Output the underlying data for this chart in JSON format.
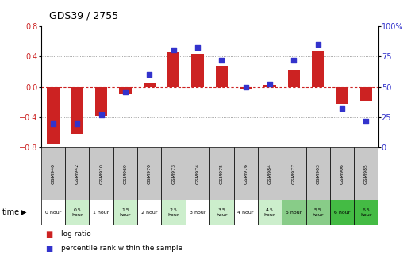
{
  "title": "GDS39 / 2755",
  "samples": [
    "GSM940",
    "GSM942",
    "GSM910",
    "GSM969",
    "GSM970",
    "GSM973",
    "GSM974",
    "GSM975",
    "GSM976",
    "GSM984",
    "GSM977",
    "GSM903",
    "GSM906",
    "GSM985"
  ],
  "time_labels": [
    "0 hour",
    "0.5\nhour",
    "1 hour",
    "1.5\nhour",
    "2 hour",
    "2.5\nhour",
    "3 hour",
    "3.5\nhour",
    "4 hour",
    "4.5\nhour",
    "5 hour",
    "5.5\nhour",
    "6 hour",
    "6.5\nhour"
  ],
  "log_ratio": [
    -0.75,
    -0.62,
    -0.38,
    -0.1,
    0.05,
    0.45,
    0.43,
    0.28,
    -0.03,
    0.03,
    0.22,
    0.47,
    -0.22,
    -0.18
  ],
  "percentile": [
    20,
    20,
    27,
    46,
    60,
    80,
    82,
    72,
    50,
    52,
    72,
    85,
    32,
    22
  ],
  "ylim_left": [
    -0.8,
    0.8
  ],
  "ylim_right": [
    0,
    100
  ],
  "bar_color": "#cc2222",
  "dot_color": "#3333cc",
  "zero_line_color": "#cc2222",
  "dotted_line_color": "#888888",
  "bg_plot": "#ffffff",
  "gsm_bg": "#c8c8c8",
  "time_cell_colors": [
    "#ffffff",
    "#cceecc",
    "#ffffff",
    "#cceecc",
    "#ffffff",
    "#cceecc",
    "#ffffff",
    "#cceecc",
    "#ffffff",
    "#cceecc",
    "#88cc88",
    "#88cc88",
    "#44bb44",
    "#44bb44"
  ]
}
